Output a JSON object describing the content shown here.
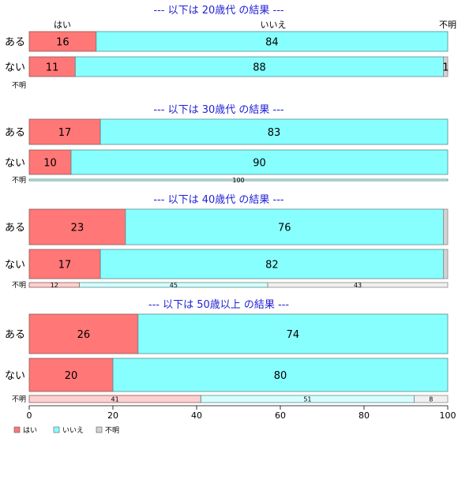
{
  "chart_data": {
    "type": "bar",
    "orientation": "horizontal",
    "stacked": true,
    "percent": true,
    "xlim": [
      0,
      100
    ],
    "xticks": [
      0,
      20,
      40,
      60,
      80,
      100
    ],
    "grid": false,
    "legend_position": "bottom-left",
    "column_labels": [
      "はい",
      "いいえ",
      "不明"
    ],
    "legend": [
      {
        "name": "はい",
        "color": "#ff7777"
      },
      {
        "name": "いいえ",
        "color": "#88ffff"
      },
      {
        "name": "不明",
        "color": "#d3d3d3"
      }
    ],
    "panels": [
      {
        "title": "--- 以下は 20歳代 の結果 ---",
        "rows": [
          {
            "label": "ある",
            "values": [
              16,
              84,
              0
            ],
            "labels": [
              "16",
              "84",
              ""
            ]
          },
          {
            "label": "ない",
            "values": [
              11,
              88,
              1
            ],
            "labels": [
              "11",
              "88",
              "1"
            ]
          },
          {
            "label": "不明",
            "values": [
              0,
              0,
              0
            ],
            "labels": [
              "",
              "",
              ""
            ]
          }
        ]
      },
      {
        "title": "--- 以下は 30歳代 の結果 ---",
        "rows": [
          {
            "label": "ある",
            "values": [
              17,
              83,
              0
            ],
            "labels": [
              "17",
              "83",
              ""
            ]
          },
          {
            "label": "ない",
            "values": [
              10,
              90,
              0
            ],
            "labels": [
              "10",
              "90",
              ""
            ]
          },
          {
            "label": "不明",
            "values": [
              0,
              100,
              0
            ],
            "labels": [
              "",
              "100",
              ""
            ]
          }
        ]
      },
      {
        "title": "--- 以下は 40歳代 の結果 ---",
        "rows": [
          {
            "label": "ある",
            "values": [
              23,
              76,
              1
            ],
            "labels": [
              "23",
              "76",
              ""
            ]
          },
          {
            "label": "ない",
            "values": [
              17,
              82,
              1
            ],
            "labels": [
              "17",
              "82",
              ""
            ]
          },
          {
            "label": "不明",
            "values": [
              12,
              45,
              43
            ],
            "labels": [
              "12",
              "45",
              "43"
            ]
          }
        ]
      },
      {
        "title": "--- 以下は 50歳以上 の結果 ---",
        "rows": [
          {
            "label": "ある",
            "values": [
              26,
              74,
              0
            ],
            "labels": [
              "26",
              "74",
              ""
            ]
          },
          {
            "label": "ない",
            "values": [
              20,
              80,
              0
            ],
            "labels": [
              "20",
              "80",
              ""
            ]
          },
          {
            "label": "不明",
            "values": [
              41,
              51,
              8
            ],
            "labels": [
              "41",
              "51",
              "8"
            ]
          }
        ]
      }
    ]
  }
}
